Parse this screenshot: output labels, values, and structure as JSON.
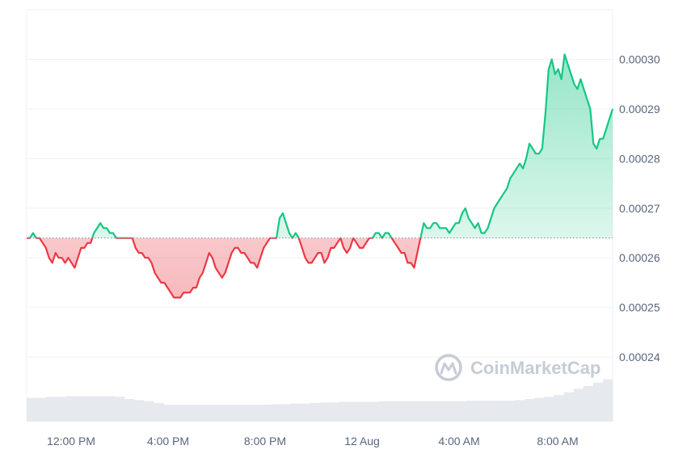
{
  "chart_data": {
    "type": "line",
    "baseline": 0.000264,
    "ylim": [
      0.000227,
      0.00031
    ],
    "y_ticks": [
      {
        "value": 0.00024,
        "label": "0.00024"
      },
      {
        "value": 0.00025,
        "label": "0.00025"
      },
      {
        "value": 0.00026,
        "label": "0.00026"
      },
      {
        "value": 0.00027,
        "label": "0.00027"
      },
      {
        "value": 0.00028,
        "label": "0.00028"
      },
      {
        "value": 0.00029,
        "label": "0.00029"
      },
      {
        "value": 0.0003,
        "label": "0.00030"
      }
    ],
    "x_ticks": [
      "12:00 PM",
      "4:00 PM",
      "8:00 PM",
      "12 Aug",
      "4:00 AM",
      "8:00 AM"
    ],
    "grid": true,
    "colors": {
      "up": "#16c784",
      "down": "#ea3943",
      "grid": "#eff2f5",
      "volume": "#e6e9ee"
    },
    "series": [
      {
        "values": [
          0.000264,
          0.000264,
          0.000265,
          0.000264,
          0.000264,
          0.000263,
          0.000262,
          0.00026,
          0.000259,
          0.000261,
          0.00026,
          0.00026,
          0.000259,
          0.00026,
          0.000259,
          0.000258,
          0.00026,
          0.000262,
          0.000262,
          0.000263,
          0.000263,
          0.000265,
          0.000266,
          0.000267,
          0.000266,
          0.000266,
          0.000265,
          0.000265,
          0.000264,
          0.000264,
          0.000264,
          0.000264,
          0.000264,
          0.000264,
          0.000262,
          0.000261,
          0.000261,
          0.00026,
          0.00026,
          0.000259,
          0.000257,
          0.000256,
          0.000255,
          0.000255,
          0.000254,
          0.000253,
          0.000252,
          0.000252,
          0.000252,
          0.000253,
          0.000253,
          0.000253,
          0.000254,
          0.000254,
          0.000256,
          0.000257,
          0.000259,
          0.000261,
          0.00026,
          0.000258,
          0.000257,
          0.000256,
          0.000257,
          0.000259,
          0.000261,
          0.000262,
          0.000262,
          0.000261,
          0.000261,
          0.00026,
          0.000259,
          0.000259,
          0.000258,
          0.00026,
          0.000262,
          0.000263,
          0.000264,
          0.000264,
          0.000264,
          0.000268,
          0.000269,
          0.000267,
          0.000265,
          0.000264,
          0.000265,
          0.000264,
          0.000262,
          0.00026,
          0.000259,
          0.000259,
          0.00026,
          0.000261,
          0.000261,
          0.000259,
          0.00026,
          0.000262,
          0.000262,
          0.000263,
          0.000264,
          0.000262,
          0.000261,
          0.000262,
          0.000264,
          0.000263,
          0.000262,
          0.000262,
          0.000263,
          0.000264,
          0.000264,
          0.000265,
          0.000265,
          0.000264,
          0.000265,
          0.000265,
          0.000264,
          0.000263,
          0.000262,
          0.000261,
          0.000261,
          0.000259,
          0.000259,
          0.000258,
          0.000261,
          0.000264,
          0.000267,
          0.000266,
          0.000266,
          0.000267,
          0.000267,
          0.000266,
          0.000266,
          0.000266,
          0.000265,
          0.000266,
          0.000267,
          0.000267,
          0.000269,
          0.00027,
          0.000268,
          0.000267,
          0.000266,
          0.000267,
          0.000265,
          0.000265,
          0.000266,
          0.000268,
          0.00027,
          0.000271,
          0.000272,
          0.000273,
          0.000274,
          0.000276,
          0.000277,
          0.000278,
          0.000279,
          0.000278,
          0.00028,
          0.000283,
          0.000282,
          0.000281,
          0.000281,
          0.000282,
          0.000289,
          0.000298,
          0.0003,
          0.000297,
          0.000298,
          0.000296,
          0.000301,
          0.000299,
          0.000297,
          0.000295,
          0.000294,
          0.000296,
          0.000294,
          0.000292,
          0.00029,
          0.000283,
          0.000282,
          0.000284,
          0.000284,
          0.000286,
          0.000288,
          0.00029
        ]
      }
    ],
    "volume_relative": [
      0.42,
      0.42,
      0.44,
      0.44,
      0.45,
      0.45,
      0.45,
      0.45,
      0.45,
      0.44,
      0.4,
      0.38,
      0.36,
      0.33,
      0.3,
      0.3,
      0.3,
      0.3,
      0.3,
      0.3,
      0.3,
      0.3,
      0.3,
      0.3,
      0.3,
      0.31,
      0.31,
      0.32,
      0.32,
      0.33,
      0.34,
      0.34,
      0.35,
      0.35,
      0.35,
      0.35,
      0.36,
      0.36,
      0.36,
      0.36,
      0.36,
      0.36,
      0.36,
      0.36,
      0.36,
      0.37,
      0.37,
      0.37,
      0.37,
      0.37,
      0.38,
      0.4,
      0.42,
      0.44,
      0.47,
      0.52,
      0.58,
      0.63,
      0.69,
      0.75
    ],
    "watermark": "CoinMarketCap"
  }
}
